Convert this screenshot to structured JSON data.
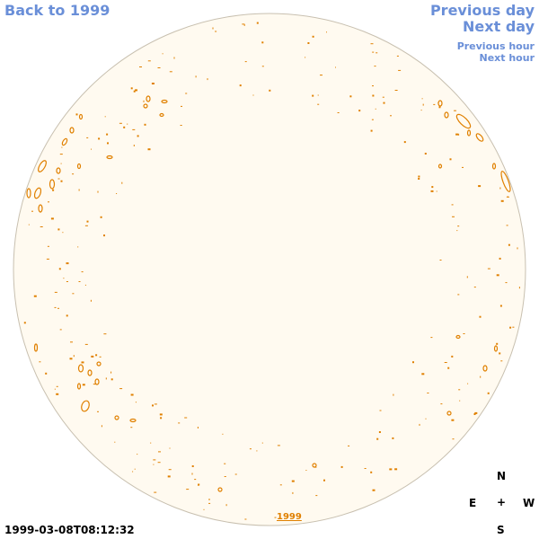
{
  "nav": {
    "back_label": "Back to 1999",
    "previous_day_label": "Previous day",
    "next_day_label": "Next day",
    "previous_hour_label": "Previous hour",
    "next_hour_label": "Next hour"
  },
  "disk": {
    "fill_color": "#fffaf0",
    "border_color": "#c8c0b0",
    "feature_color": "#e08000"
  },
  "link_color": "#6a8fd8",
  "year_link_color": "#e08000",
  "year_link_label": "1999",
  "compass": {
    "north": "N",
    "east": "E",
    "center": "+",
    "west": "W",
    "south": "S"
  },
  "timestamp": "1999-03-08T08:12:32"
}
